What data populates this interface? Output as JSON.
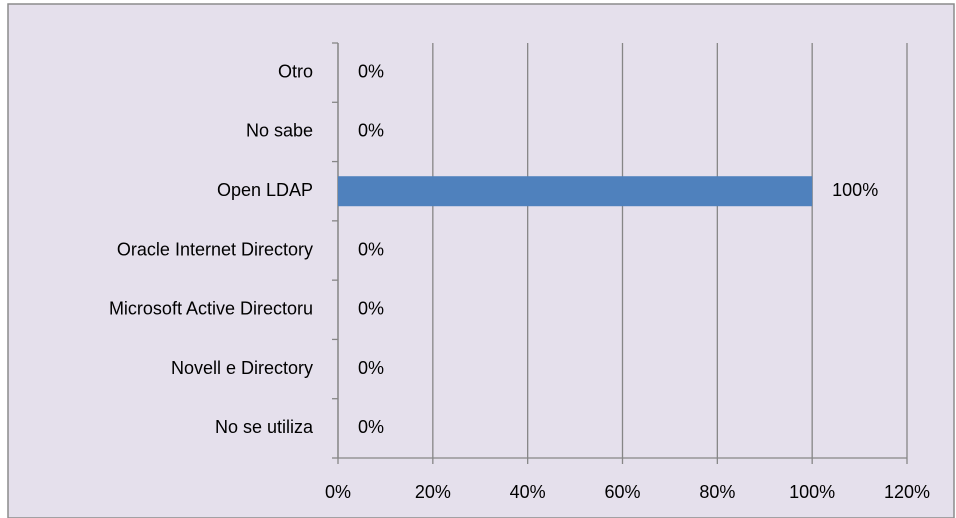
{
  "chart_data": {
    "type": "bar",
    "orientation": "horizontal",
    "categories": [
      "Otro",
      "No sabe",
      "Open LDAP",
      "Oracle Internet Directory",
      "Microsoft Active Directoru",
      "Novell e Directory",
      "No se utiliza"
    ],
    "values": [
      0,
      0,
      100,
      0,
      0,
      0,
      0
    ],
    "value_labels": [
      "0%",
      "0%",
      "100%",
      "0%",
      "0%",
      "0%",
      "0%"
    ],
    "color": "#4f81bd",
    "xlim": [
      0,
      120
    ],
    "xticks": [
      {
        "value": 0,
        "label": "0%"
      },
      {
        "value": 20,
        "label": "20%"
      },
      {
        "value": 40,
        "label": "40%"
      },
      {
        "value": 60,
        "label": "60%"
      },
      {
        "value": 80,
        "label": "80%"
      },
      {
        "value": 100,
        "label": "100%"
      },
      {
        "value": 120,
        "label": "120%"
      }
    ],
    "grid": true
  }
}
